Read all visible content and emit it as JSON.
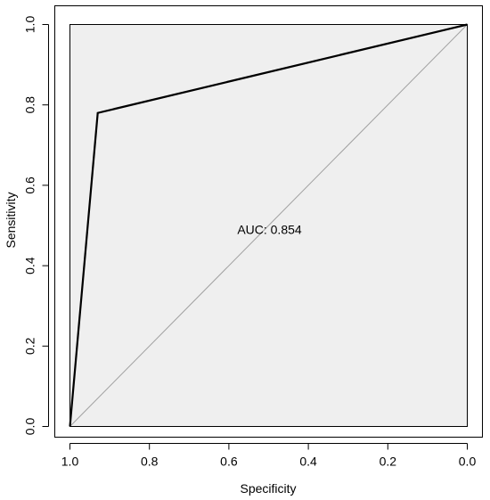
{
  "chart_data": {
    "type": "line",
    "title": "",
    "xlabel": "Specificity",
    "ylabel": "Sensitivity",
    "xlim": [
      1.0,
      0.0
    ],
    "ylim": [
      0.0,
      1.0
    ],
    "x_reversed": true,
    "grid": false,
    "x_ticks": [
      "1.0",
      "0.8",
      "0.6",
      "0.4",
      "0.2",
      "0.0"
    ],
    "y_ticks": [
      "0.0",
      "0.2",
      "0.4",
      "0.6",
      "0.8",
      "1.0"
    ],
    "x_tick_values": [
      1.0,
      0.8,
      0.6,
      0.4,
      0.2,
      0.0
    ],
    "y_tick_values": [
      0.0,
      0.2,
      0.4,
      0.6,
      0.8,
      1.0
    ],
    "series": [
      {
        "x": [
          1.0,
          0.93,
          0.0
        ],
        "y": [
          0.0,
          0.78,
          1.0
        ],
        "color": "#000000"
      }
    ],
    "reference_line": {
      "x": [
        1.0,
        0.0
      ],
      "y": [
        0.0,
        1.0
      ],
      "color": "#a0a0a0"
    },
    "annotations": [
      {
        "text": "AUC: 0.854",
        "x": 0.5,
        "y": 0.49
      }
    ],
    "colors": {
      "plot_background": "#efefef",
      "reference_line": "#a0a0a0",
      "curve": "#000000"
    }
  }
}
